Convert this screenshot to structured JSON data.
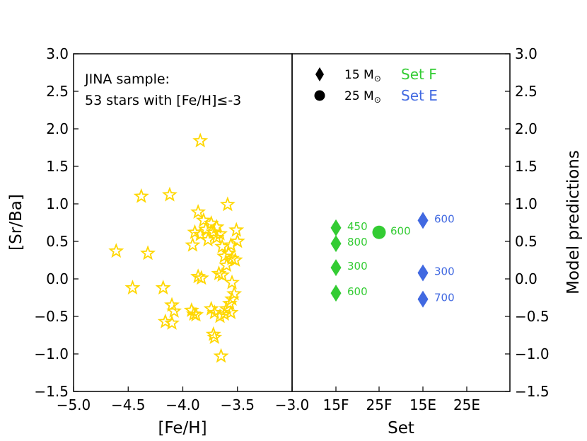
{
  "chart_data": [
    {
      "type": "scatter",
      "panel": "left",
      "xlabel": "[Fe/H]",
      "ylabel": "[Sr/Ba]",
      "xlim": [
        -5.0,
        -3.0
      ],
      "ylim": [
        -1.5,
        3.0
      ],
      "xticks": [
        -5.0,
        -4.5,
        -4.0,
        -3.5,
        -3.0
      ],
      "xtick_labels": [
        "−5.0",
        "−4.5",
        "−4.0",
        "−3.5",
        "−3.0"
      ],
      "yticks": [
        -1.5,
        -1.0,
        -0.5,
        0.0,
        0.5,
        1.0,
        1.5,
        2.0,
        2.5,
        3.0
      ],
      "ytick_labels": [
        "−1.5",
        "−1.0",
        "−0.5",
        "0.0",
        "0.5",
        "1.0",
        "1.5",
        "2.0",
        "2.5",
        "3.0"
      ],
      "annotation_line1": "JINA sample:",
      "annotation_line2": "53 stars with [Fe/H]≤-3",
      "marker": "star",
      "marker_color": "#FFD700",
      "points": [
        {
          "x": -3.84,
          "y": 1.84
        },
        {
          "x": -4.38,
          "y": 1.1
        },
        {
          "x": -4.12,
          "y": 1.12
        },
        {
          "x": -3.59,
          "y": 0.99
        },
        {
          "x": -3.86,
          "y": 0.89
        },
        {
          "x": -3.81,
          "y": 0.78
        },
        {
          "x": -3.74,
          "y": 0.74
        },
        {
          "x": -3.69,
          "y": 0.69
        },
        {
          "x": -3.79,
          "y": 0.66
        },
        {
          "x": -3.51,
          "y": 0.65
        },
        {
          "x": -3.89,
          "y": 0.62
        },
        {
          "x": -3.72,
          "y": 0.62
        },
        {
          "x": -3.84,
          "y": 0.59
        },
        {
          "x": -3.66,
          "y": 0.6
        },
        {
          "x": -3.69,
          "y": 0.55
        },
        {
          "x": -3.77,
          "y": 0.52
        },
        {
          "x": -3.5,
          "y": 0.5
        },
        {
          "x": -3.56,
          "y": 0.45
        },
        {
          "x": -3.91,
          "y": 0.45
        },
        {
          "x": -3.64,
          "y": 0.43
        },
        {
          "x": -4.61,
          "y": 0.37
        },
        {
          "x": -4.32,
          "y": 0.34
        },
        {
          "x": -3.58,
          "y": 0.34
        },
        {
          "x": -3.62,
          "y": 0.3
        },
        {
          "x": -3.55,
          "y": 0.27
        },
        {
          "x": -3.52,
          "y": 0.25
        },
        {
          "x": -3.6,
          "y": 0.18
        },
        {
          "x": -3.67,
          "y": 0.07
        },
        {
          "x": -3.64,
          "y": 0.05
        },
        {
          "x": -3.86,
          "y": 0.03
        },
        {
          "x": -3.83,
          "y": 0.01
        },
        {
          "x": -3.55,
          "y": -0.05
        },
        {
          "x": -4.46,
          "y": -0.12
        },
        {
          "x": -4.18,
          "y": -0.12
        },
        {
          "x": -3.53,
          "y": -0.2
        },
        {
          "x": -3.55,
          "y": -0.27
        },
        {
          "x": -3.57,
          "y": -0.33
        },
        {
          "x": -4.1,
          "y": -0.35
        },
        {
          "x": -3.92,
          "y": -0.42
        },
        {
          "x": -3.74,
          "y": -0.4
        },
        {
          "x": -4.08,
          "y": -0.43
        },
        {
          "x": -3.6,
          "y": -0.4
        },
        {
          "x": -3.71,
          "y": -0.45
        },
        {
          "x": -3.56,
          "y": -0.45
        },
        {
          "x": -3.9,
          "y": -0.47
        },
        {
          "x": -3.62,
          "y": -0.47
        },
        {
          "x": -3.88,
          "y": -0.48
        },
        {
          "x": -3.66,
          "y": -0.5
        },
        {
          "x": -4.16,
          "y": -0.57
        },
        {
          "x": -4.1,
          "y": -0.59
        },
        {
          "x": -3.72,
          "y": -0.74
        },
        {
          "x": -3.71,
          "y": -0.78
        },
        {
          "x": -3.65,
          "y": -1.03
        }
      ]
    },
    {
      "type": "scatter",
      "panel": "right",
      "xlabel": "Set",
      "ylabel": "Model predictions",
      "ylim": [
        -1.5,
        3.0
      ],
      "x_categories": [
        "15F",
        "25F",
        "15E",
        "25E"
      ],
      "yticks": [
        -1.5,
        -1.0,
        -0.5,
        0.0,
        0.5,
        1.0,
        1.5,
        2.0,
        2.5,
        3.0
      ],
      "ytick_labels": [
        "−1.5",
        "−1.0",
        "−0.5",
        "0.0",
        "0.5",
        "1.0",
        "1.5",
        "2.0",
        "2.5",
        "3.0"
      ],
      "legend": [
        {
          "marker": "diamond",
          "label": "15 M",
          "sub": "⊙",
          "set_label": "Set F",
          "set_color": "#33CC33"
        },
        {
          "marker": "circle",
          "label": "25 M",
          "sub": "⊙",
          "set_label": "Set E",
          "set_color": "#4169E1"
        }
      ],
      "series": [
        {
          "name": "Set F",
          "color": "#33CC33",
          "points": [
            {
              "category": "15F",
              "y": 0.68,
              "marker": "diamond",
              "label": "450"
            },
            {
              "category": "15F",
              "y": 0.47,
              "marker": "diamond",
              "label": "800"
            },
            {
              "category": "15F",
              "y": 0.15,
              "marker": "diamond",
              "label": "300"
            },
            {
              "category": "15F",
              "y": -0.19,
              "marker": "diamond",
              "label": "600"
            },
            {
              "category": "25F",
              "y": 0.62,
              "marker": "circle",
              "label": "600"
            }
          ]
        },
        {
          "name": "Set E",
          "color": "#4169E1",
          "points": [
            {
              "category": "15E",
              "y": 0.78,
              "marker": "diamond",
              "label": "600"
            },
            {
              "category": "15E",
              "y": 0.08,
              "marker": "diamond",
              "label": "300"
            },
            {
              "category": "15E",
              "y": -0.27,
              "marker": "diamond",
              "label": "700"
            }
          ]
        }
      ]
    }
  ]
}
